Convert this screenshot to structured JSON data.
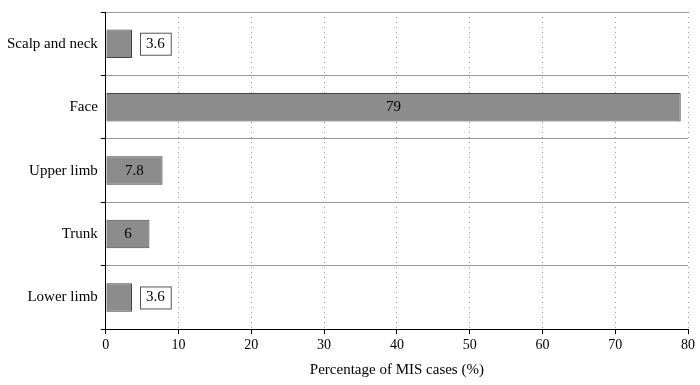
{
  "chart_data": {
    "type": "bar",
    "orientation": "horizontal",
    "categories": [
      "Scalp and neck",
      "Face",
      "Upper limb",
      "Trunk",
      "Lower limb"
    ],
    "values": [
      3.6,
      79,
      7.8,
      6,
      3.6
    ],
    "color": "#8c8c8c",
    "x_label": "Percentage of MIS cases (%)",
    "xlim": [
      0,
      80
    ],
    "xticks": [
      0,
      10,
      20,
      30,
      40,
      50,
      60,
      70,
      80
    ],
    "grid": true,
    "data_labels": true
  }
}
